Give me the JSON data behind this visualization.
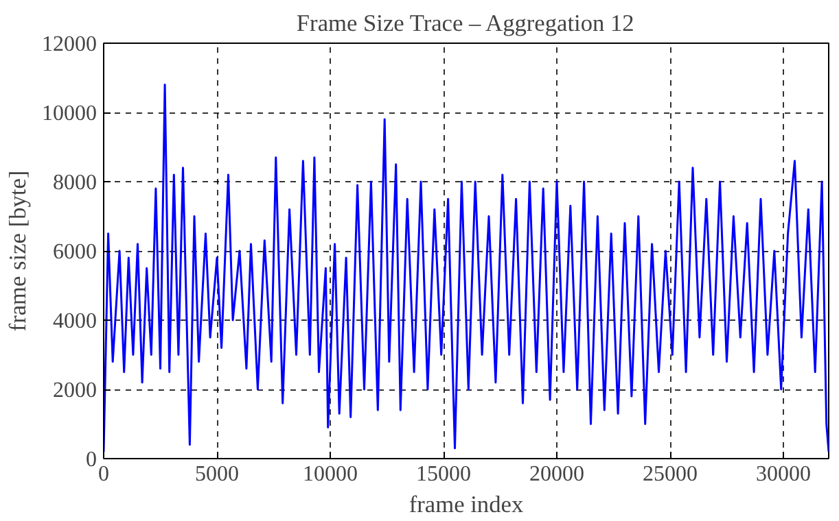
{
  "chart_data": {
    "type": "line",
    "title": "Frame Size Trace – Aggregation 12",
    "xlabel": "frame index",
    "ylabel": "frame size [byte]",
    "xlim": [
      0,
      32000
    ],
    "ylim": [
      0,
      12000
    ],
    "xticks": [
      0,
      5000,
      10000,
      15000,
      20000,
      25000,
      30000
    ],
    "yticks": [
      0,
      2000,
      4000,
      6000,
      8000,
      10000,
      12000
    ],
    "grid": true,
    "line_style": "solid",
    "series": [
      {
        "color": "#0000ff",
        "x": [
          0,
          200,
          400,
          700,
          900,
          1100,
          1300,
          1500,
          1700,
          1900,
          2100,
          2300,
          2500,
          2700,
          2900,
          3100,
          3300,
          3500,
          3800,
          4000,
          4200,
          4500,
          4700,
          5000,
          5200,
          5500,
          5700,
          6000,
          6300,
          6500,
          6800,
          7100,
          7400,
          7600,
          7900,
          8200,
          8500,
          8800,
          9100,
          9300,
          9500,
          9800,
          9900,
          10200,
          10400,
          10700,
          10900,
          11200,
          11500,
          11800,
          12100,
          12400,
          12600,
          12900,
          13100,
          13400,
          13700,
          14000,
          14300,
          14600,
          14900,
          15200,
          15500,
          15800,
          16100,
          16400,
          16700,
          17000,
          17300,
          17600,
          17900,
          18200,
          18500,
          18800,
          19100,
          19400,
          19700,
          20000,
          20300,
          20600,
          20900,
          21200,
          21500,
          21800,
          22100,
          22400,
          22700,
          23000,
          23300,
          23600,
          23900,
          24200,
          24500,
          24800,
          25100,
          25400,
          25700,
          26000,
          26300,
          26600,
          26900,
          27200,
          27500,
          27800,
          28100,
          28400,
          28700,
          29000,
          29300,
          29600,
          29900,
          30200,
          30500,
          30800,
          31100,
          31400,
          31700,
          31900,
          32000
        ],
        "values": [
          200,
          6500,
          2800,
          6000,
          2500,
          5800,
          3000,
          6200,
          2200,
          5500,
          3000,
          7800,
          2600,
          10800,
          2500,
          8200,
          3000,
          8400,
          400,
          7000,
          2800,
          6500,
          3500,
          5800,
          3200,
          8200,
          4000,
          6000,
          2600,
          6200,
          2000,
          6300,
          2800,
          8700,
          1600,
          7200,
          3000,
          8600,
          3000,
          8700,
          2500,
          5500,
          900,
          6200,
          1300,
          5800,
          1200,
          7900,
          2000,
          8000,
          1400,
          9800,
          2800,
          8500,
          1400,
          7500,
          2500,
          8000,
          2000,
          7200,
          3000,
          7500,
          300,
          8000,
          2000,
          8000,
          3000,
          7000,
          2200,
          8200,
          3000,
          7500,
          1600,
          8000,
          2500,
          7800,
          1700,
          8000,
          2500,
          7300,
          2000,
          8000,
          1000,
          7000,
          1400,
          6500,
          1300,
          6800,
          1800,
          7000,
          1000,
          6200,
          2500,
          6000,
          3000,
          8000,
          2500,
          8400,
          3500,
          7500,
          3000,
          8000,
          2800,
          7000,
          3500,
          6800,
          2500,
          7500,
          3000,
          6000,
          2000,
          6500,
          8600,
          3500,
          7200,
          2500,
          8000,
          1000,
          200
        ]
      }
    ]
  }
}
